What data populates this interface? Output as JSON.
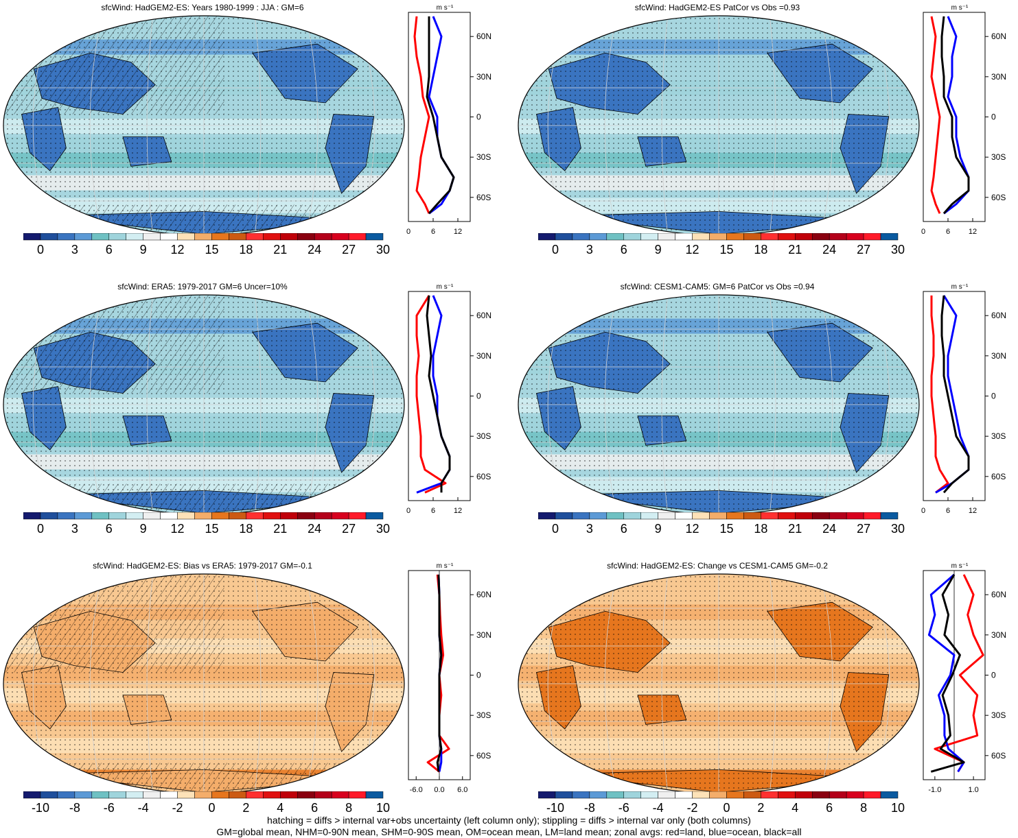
{
  "panels": [
    {
      "title": "sfcWind: HadGEM2-ES: Years 1980-1999 : JJA : GM=6",
      "kind": "abs",
      "colorbar_ticks": [
        "0",
        "3",
        "6",
        "9",
        "12",
        "15",
        "18",
        "21",
        "24",
        "27",
        "30"
      ],
      "zonal_unit": "m s⁻¹",
      "zonal_xticks": [
        "0",
        "6",
        "12"
      ],
      "zonal_yticks": [
        "60N",
        "30N",
        "0",
        "30S",
        "60S"
      ]
    },
    {
      "title": "sfcWind: HadGEM2-ES PatCor vs Obs =0.93",
      "kind": "abs",
      "colorbar_ticks": [
        "0",
        "3",
        "6",
        "9",
        "12",
        "15",
        "18",
        "21",
        "24",
        "27",
        "30"
      ],
      "zonal_unit": "m s⁻¹",
      "zonal_xticks": [
        "0",
        "6",
        "12"
      ],
      "zonal_yticks": [
        "60N",
        "30N",
        "0",
        "30S",
        "60S"
      ]
    },
    {
      "title": "sfcWind: ERA5: 1979-2017 GM=6 Uncer=10%",
      "kind": "abs",
      "colorbar_ticks": [
        "0",
        "3",
        "6",
        "9",
        "12",
        "15",
        "18",
        "21",
        "24",
        "27",
        "30"
      ],
      "zonal_unit": "m s⁻¹",
      "zonal_xticks": [
        "0",
        "6",
        "12"
      ],
      "zonal_yticks": [
        "60N",
        "30N",
        "0",
        "30S",
        "60S"
      ]
    },
    {
      "title": "sfcWind: CESM1-CAM5: GM=6 PatCor vs Obs =0.94",
      "kind": "abs",
      "colorbar_ticks": [
        "0",
        "3",
        "6",
        "9",
        "12",
        "15",
        "18",
        "21",
        "24",
        "27",
        "30"
      ],
      "zonal_unit": "m s⁻¹",
      "zonal_xticks": [
        "0",
        "6",
        "12"
      ],
      "zonal_yticks": [
        "60N",
        "30N",
        "0",
        "30S",
        "60S"
      ]
    },
    {
      "title": "sfcWind: HadGEM2-ES: Bias vs ERA5: 1979-2017 GM=-0.1",
      "kind": "diff",
      "colorbar_ticks": [
        "-10",
        "-8",
        "-6",
        "-4",
        "-2",
        "0",
        "2",
        "4",
        "6",
        "8",
        "10"
      ],
      "zonal_unit": "m s⁻¹",
      "zonal_xticks": [
        "-6.0",
        "0.0",
        "6.0"
      ],
      "zonal_yticks": [
        "60N",
        "30N",
        "0",
        "30S",
        "60S"
      ]
    },
    {
      "title": "sfcWind: HadGEM2-ES: Change vs CESM1-CAM5 GM=-0.2",
      "kind": "diff",
      "colorbar_ticks": [
        "-10",
        "-8",
        "-6",
        "-4",
        "-2",
        "0",
        "2",
        "4",
        "6",
        "8",
        "10"
      ],
      "zonal_unit": "m s⁻¹",
      "zonal_xticks": [
        "-1.0",
        "1.0"
      ],
      "zonal_yticks": [
        "60N",
        "30N",
        "0",
        "30S",
        "60S"
      ]
    }
  ],
  "colors": {
    "zonal_land": "#ff0000",
    "zonal_ocean": "#0000ff",
    "zonal_all": "#000000",
    "abs_palette": [
      "#141a6e",
      "#1f4f9c",
      "#3a74c0",
      "#5c9ad6",
      "#6fc1c3",
      "#9fd4dc",
      "#d3eef2",
      "#f0f0f0",
      "#ffffff",
      "#fde2b8",
      "#f4ad6a",
      "#e6761e",
      "#cc5a12",
      "#ff3030",
      "#e01010",
      "#c0000a",
      "#8a0010",
      "#b4001a",
      "#d8001e",
      "#ff1a2a",
      "#0a5aa0"
    ],
    "diff_palette": [
      "#141a6e",
      "#1f4f9c",
      "#3a74c0",
      "#5c9ad6",
      "#6fc1c3",
      "#9fd4dc",
      "#d3eef2",
      "#f0f0f0",
      "#ffffff",
      "#fde2b8",
      "#f4ad6a",
      "#e6761e",
      "#cc5a12",
      "#ff3030",
      "#e01010",
      "#c0000a",
      "#8a0010",
      "#b4001a",
      "#d8001e",
      "#ff1a2a",
      "#0a5aa0"
    ]
  },
  "chart_data": [
    {
      "type": "line",
      "title": "sfcWind: HadGEM2-ES: Years 1980-1999 : JJA : GM=6",
      "xlabel": "m s⁻¹",
      "xlim": [
        0,
        15
      ],
      "ylim": [
        -78,
        78
      ],
      "y": [
        75,
        60,
        45,
        30,
        15,
        0,
        -15,
        -30,
        -45,
        -55,
        -65,
        -72
      ],
      "series": [
        {
          "name": "red=land",
          "values": [
            2,
            1.5,
            2,
            3,
            3.5,
            5,
            4,
            3,
            2.5,
            2,
            4,
            5
          ]
        },
        {
          "name": "blue=ocean",
          "values": [
            6,
            8,
            7,
            6,
            5,
            7,
            7,
            8,
            11,
            10,
            8,
            5
          ]
        },
        {
          "name": "black=all",
          "values": [
            5,
            5,
            5,
            5,
            4.5,
            6,
            7,
            8,
            11,
            10,
            7,
            5
          ]
        }
      ]
    },
    {
      "type": "line",
      "title": "sfcWind: HadGEM2-ES PatCor vs Obs =0.93",
      "xlabel": "m s⁻¹",
      "xlim": [
        0,
        15
      ],
      "ylim": [
        -78,
        78
      ],
      "y": [
        75,
        60,
        45,
        30,
        15,
        0,
        -15,
        -30,
        -45,
        -55,
        -65,
        -72
      ],
      "series": [
        {
          "name": "red=land",
          "values": [
            2,
            3,
            2.5,
            2,
            3,
            4,
            3.5,
            3,
            2.5,
            2,
            3,
            4
          ]
        },
        {
          "name": "blue=ocean",
          "values": [
            6,
            8,
            7,
            7,
            6,
            8,
            8,
            9,
            11,
            11,
            8,
            5
          ]
        },
        {
          "name": "black=all",
          "values": [
            5,
            4.5,
            4.5,
            5,
            5,
            7,
            7,
            8,
            11,
            11,
            7,
            5
          ]
        }
      ]
    },
    {
      "type": "line",
      "title": "sfcWind: ERA5: 1979-2017 GM=6 Uncer=10%",
      "xlabel": "m s⁻¹",
      "xlim": [
        0,
        15
      ],
      "ylim": [
        -78,
        78
      ],
      "y": [
        75,
        60,
        45,
        30,
        15,
        0,
        -15,
        -30,
        -45,
        -55,
        -65,
        -72
      ],
      "series": [
        {
          "name": "red=land",
          "values": [
            5,
            2,
            2,
            2.5,
            2,
            2,
            2.5,
            3,
            3,
            4,
            9,
            4
          ]
        },
        {
          "name": "blue=ocean",
          "values": [
            6,
            8,
            7,
            6,
            6,
            7,
            7,
            8,
            10,
            10,
            8,
            2
          ]
        },
        {
          "name": "black=all",
          "values": [
            5,
            4.5,
            5,
            5.5,
            5,
            6,
            7,
            8,
            10,
            10,
            8,
            8
          ]
        }
      ]
    },
    {
      "type": "line",
      "title": "sfcWind: CESM1-CAM5: GM=6 PatCor vs Obs =0.94",
      "xlabel": "m s⁻¹",
      "xlim": [
        0,
        15
      ],
      "ylim": [
        -78,
        78
      ],
      "y": [
        75,
        60,
        45,
        30,
        15,
        0,
        -15,
        -30,
        -45,
        -55,
        -65,
        -72
      ],
      "series": [
        {
          "name": "red=land",
          "values": [
            2,
            2,
            2.5,
            2.5,
            2,
            2,
            2.5,
            3,
            3,
            4,
            6,
            3
          ]
        },
        {
          "name": "blue=ocean",
          "values": [
            5,
            8,
            7,
            6,
            6,
            7,
            8,
            9,
            11,
            11,
            7,
            3
          ]
        },
        {
          "name": "black=all",
          "values": [
            5,
            4.5,
            4.5,
            5,
            5,
            6,
            7,
            8,
            11,
            11,
            7,
            5
          ]
        }
      ]
    },
    {
      "type": "line",
      "title": "sfcWind: HadGEM2-ES: Bias vs ERA5: 1979-2017 GM=-0.1",
      "xlabel": "m s⁻¹",
      "xlim": [
        -8,
        8
      ],
      "ylim": [
        -78,
        78
      ],
      "y": [
        75,
        60,
        45,
        30,
        15,
        0,
        -15,
        -30,
        -45,
        -55,
        -65,
        -72
      ],
      "series": [
        {
          "name": "red=land",
          "values": [
            -0.5,
            0,
            0.2,
            0.5,
            1,
            0,
            0.5,
            0,
            0,
            2.5,
            -3,
            0
          ]
        },
        {
          "name": "blue=ocean",
          "values": [
            -0.2,
            0,
            0,
            0,
            0.5,
            0,
            0,
            0,
            0,
            0.5,
            0.5,
            0
          ]
        },
        {
          "name": "black=all",
          "values": [
            -0.2,
            0,
            0,
            0,
            0.5,
            0,
            0,
            0,
            0,
            0.5,
            -0.5,
            -0.2
          ]
        }
      ]
    },
    {
      "type": "line",
      "title": "sfcWind: HadGEM2-ES: Change vs CESM1-CAM5 GM=-0.2",
      "xlabel": "m s⁻¹",
      "xlim": [
        -1.6,
        1.6
      ],
      "ylim": [
        -78,
        78
      ],
      "y": [
        75,
        60,
        45,
        30,
        15,
        0,
        -15,
        -30,
        -45,
        -55,
        -65,
        -72
      ],
      "series": [
        {
          "name": "red=land",
          "values": [
            0.5,
            1,
            0.7,
            1,
            1.5,
            0.3,
            1.2,
            1,
            1.2,
            -1,
            0.5,
            0.2
          ]
        },
        {
          "name": "blue=ocean",
          "values": [
            0,
            -1.2,
            -1,
            -1.3,
            0,
            -0.2,
            -0.8,
            -0.5,
            -0.5,
            -0.3,
            0.5,
            0.2
          ]
        },
        {
          "name": "black=all",
          "values": [
            0,
            -0.6,
            -0.3,
            -0.5,
            0.3,
            -0.1,
            -0.6,
            -0.3,
            -0.2,
            -0.7,
            0.5,
            -1.2
          ]
        }
      ]
    }
  ],
  "footer": {
    "line1": "hatching = diffs > internal var+obs uncertainty (left column only); stippling = diffs > internal var only (both columns)",
    "line2": "GM=global mean, NHM=0-90N mean, SHM=0-90S mean, OM=ocean mean, LM=land mean; zonal avgs: red=land, blue=ocean, black=all"
  }
}
